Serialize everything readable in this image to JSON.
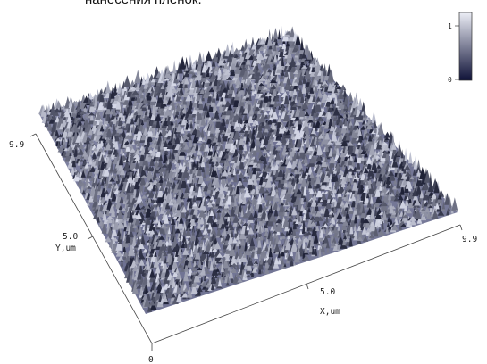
{
  "caption_fragment": "нанесения пленок.",
  "chart_data": {
    "type": "surface3d",
    "title": "",
    "x_axis": {
      "label": "X,um",
      "ticks": [
        "5.0",
        "9.9"
      ],
      "range": [
        0,
        9.9
      ]
    },
    "y_axis": {
      "label": "Y,um",
      "ticks": [
        "5.0",
        "9.9"
      ],
      "range": [
        0,
        9.9
      ]
    },
    "origin_label": "0",
    "colorbar": {
      "ticks": [
        "1",
        "0"
      ],
      "range": [
        0,
        1
      ],
      "colors": [
        "#0f1238",
        "#eceef6"
      ]
    },
    "surface_color_low": "#1e2136",
    "surface_color_high": "#d6d9e8"
  }
}
